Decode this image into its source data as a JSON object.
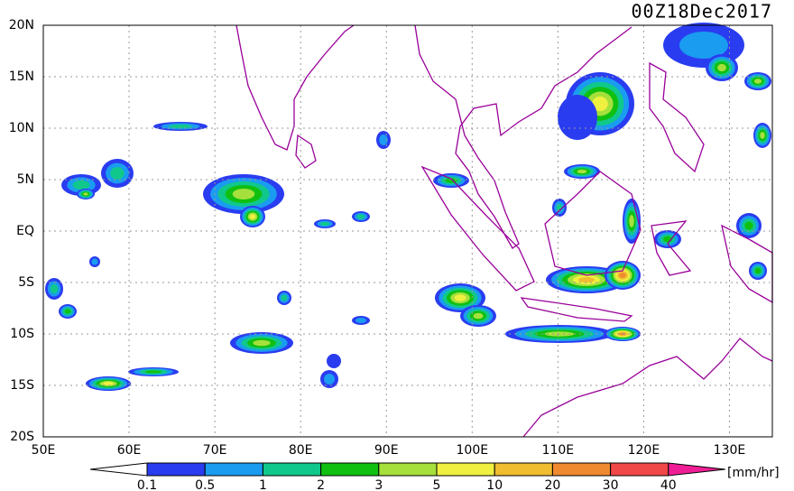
{
  "map_data": {
    "title": "00Z18Dec2017",
    "lon_range": [
      50,
      135
    ],
    "lat_range": [
      -20,
      20
    ],
    "lon_ticks": [
      {
        "value": 50,
        "label": "50E"
      },
      {
        "value": 60,
        "label": "60E"
      },
      {
        "value": 70,
        "label": "70E"
      },
      {
        "value": 80,
        "label": "80E"
      },
      {
        "value": 90,
        "label": "90E"
      },
      {
        "value": 100,
        "label": "100E"
      },
      {
        "value": 110,
        "label": "110E"
      },
      {
        "value": 120,
        "label": "120E"
      },
      {
        "value": 130,
        "label": "130E"
      }
    ],
    "lat_ticks": [
      {
        "value": 20,
        "label": "20N"
      },
      {
        "value": 15,
        "label": "15N"
      },
      {
        "value": 10,
        "label": "10N"
      },
      {
        "value": 5,
        "label": "5N"
      },
      {
        "value": 0,
        "label": "EQ"
      },
      {
        "value": -5,
        "label": "5S"
      },
      {
        "value": -10,
        "label": "10S"
      },
      {
        "value": -15,
        "label": "15S"
      },
      {
        "value": -20,
        "label": "20S"
      }
    ],
    "grid": true,
    "colorbar": {
      "unit": "[mm/hr]",
      "levels": [
        0.1,
        0.5,
        1,
        2,
        3,
        5,
        10,
        20,
        30,
        40
      ],
      "colors": [
        "#ffffff",
        "#2a3cf0",
        "#1a9cf0",
        "#10c88c",
        "#10c010",
        "#a6e03c",
        "#f0f040",
        "#f0bc30",
        "#f08a30",
        "#f04848",
        "#f01e96"
      ]
    }
  }
}
